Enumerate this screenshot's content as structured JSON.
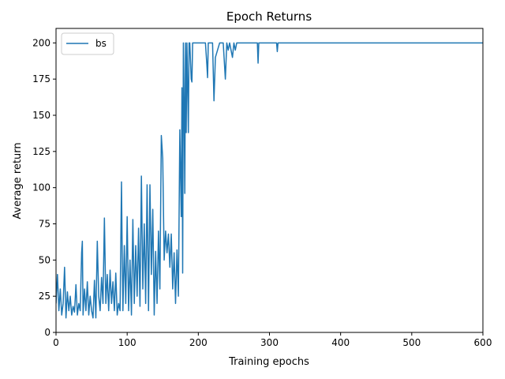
{
  "chart_data": {
    "type": "line",
    "title": "Epoch Returns",
    "xlabel": "Training epochs",
    "ylabel": "Average return",
    "xlim": [
      0,
      600
    ],
    "ylim": [
      0,
      210
    ],
    "xticks": [
      "0",
      "100",
      "200",
      "300",
      "400",
      "500",
      "600"
    ],
    "yticks": [
      "0",
      "25",
      "50",
      "75",
      "100",
      "125",
      "150",
      "175",
      "200"
    ],
    "grid": false,
    "legend_position": "top-left",
    "series_color": "#1f77b4",
    "series": [
      {
        "name": "bs",
        "points": [
          [
            0,
            20
          ],
          [
            2,
            40
          ],
          [
            4,
            15
          ],
          [
            6,
            30
          ],
          [
            8,
            12
          ],
          [
            10,
            20
          ],
          [
            12,
            45
          ],
          [
            14,
            10
          ],
          [
            16,
            28
          ],
          [
            18,
            15
          ],
          [
            20,
            25
          ],
          [
            22,
            12
          ],
          [
            24,
            18
          ],
          [
            26,
            14
          ],
          [
            28,
            33
          ],
          [
            30,
            12
          ],
          [
            32,
            20
          ],
          [
            34,
            15
          ],
          [
            36,
            55
          ],
          [
            37,
            63
          ],
          [
            38,
            12
          ],
          [
            40,
            30
          ],
          [
            42,
            15
          ],
          [
            44,
            35
          ],
          [
            46,
            12
          ],
          [
            48,
            25
          ],
          [
            50,
            15
          ],
          [
            52,
            10
          ],
          [
            54,
            36
          ],
          [
            56,
            10
          ],
          [
            58,
            63
          ],
          [
            60,
            25
          ],
          [
            62,
            15
          ],
          [
            64,
            38
          ],
          [
            66,
            20
          ],
          [
            68,
            79
          ],
          [
            70,
            20
          ],
          [
            72,
            40
          ],
          [
            74,
            15
          ],
          [
            76,
            43
          ],
          [
            78,
            20
          ],
          [
            80,
            35
          ],
          [
            82,
            15
          ],
          [
            84,
            41
          ],
          [
            86,
            12
          ],
          [
            88,
            20
          ],
          [
            90,
            15
          ],
          [
            92,
            104
          ],
          [
            93,
            55
          ],
          [
            94,
            15
          ],
          [
            96,
            60
          ],
          [
            98,
            20
          ],
          [
            100,
            80
          ],
          [
            102,
            15
          ],
          [
            104,
            50
          ],
          [
            106,
            12
          ],
          [
            108,
            78
          ],
          [
            110,
            20
          ],
          [
            112,
            60
          ],
          [
            114,
            25
          ],
          [
            116,
            72
          ],
          [
            118,
            18
          ],
          [
            120,
            108
          ],
          [
            122,
            30
          ],
          [
            124,
            75
          ],
          [
            126,
            20
          ],
          [
            128,
            102
          ],
          [
            130,
            15
          ],
          [
            132,
            102
          ],
          [
            134,
            40
          ],
          [
            136,
            85
          ],
          [
            138,
            12
          ],
          [
            140,
            56
          ],
          [
            142,
            20
          ],
          [
            144,
            70
          ],
          [
            146,
            30
          ],
          [
            148,
            136
          ],
          [
            150,
            120
          ],
          [
            152,
            50
          ],
          [
            154,
            70
          ],
          [
            156,
            55
          ],
          [
            158,
            68
          ],
          [
            160,
            45
          ],
          [
            162,
            68
          ],
          [
            164,
            30
          ],
          [
            166,
            55
          ],
          [
            168,
            20
          ],
          [
            170,
            57
          ],
          [
            172,
            25
          ],
          [
            174,
            140
          ],
          [
            176,
            80
          ],
          [
            177,
            169
          ],
          [
            178,
            41
          ],
          [
            179,
            200
          ],
          [
            180,
            160
          ],
          [
            181,
            96
          ],
          [
            182,
            200
          ],
          [
            183,
            138
          ],
          [
            184,
            200
          ],
          [
            185,
            170
          ],
          [
            186,
            138
          ],
          [
            187,
            200
          ],
          [
            188,
            200
          ],
          [
            190,
            175
          ],
          [
            191,
            173
          ],
          [
            192,
            200
          ],
          [
            210,
            200
          ],
          [
            212,
            185
          ],
          [
            213,
            176
          ],
          [
            214,
            200
          ],
          [
            220,
            200
          ],
          [
            222,
            160
          ],
          [
            224,
            190
          ],
          [
            230,
            200
          ],
          [
            235,
            200
          ],
          [
            238,
            175
          ],
          [
            240,
            200
          ],
          [
            242,
            195
          ],
          [
            244,
            200
          ],
          [
            248,
            190
          ],
          [
            250,
            200
          ],
          [
            252,
            195
          ],
          [
            254,
            200
          ],
          [
            283,
            200
          ],
          [
            284,
            186
          ],
          [
            285,
            200
          ],
          [
            310,
            200
          ],
          [
            311,
            194
          ],
          [
            312,
            200
          ],
          [
            600,
            200
          ]
        ]
      }
    ]
  }
}
